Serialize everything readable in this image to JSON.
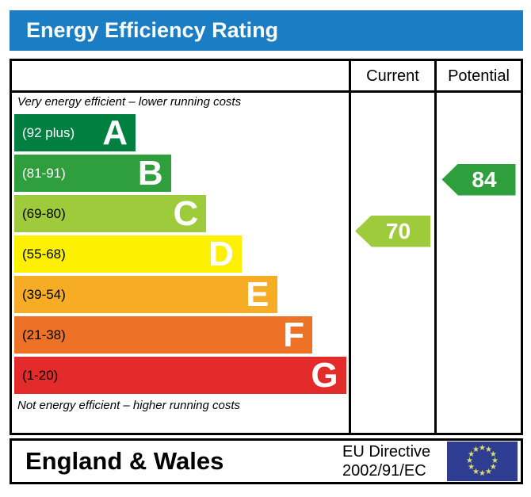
{
  "title": "Energy Efficiency Rating",
  "columns": {
    "current": "Current",
    "potential": "Potential"
  },
  "captions": {
    "top": "Very energy efficient – lower running costs",
    "bottom": "Not energy efficient – higher running costs"
  },
  "footer": {
    "region": "England & Wales",
    "directive_line1": "EU Directive",
    "directive_line2": "2002/91/EC",
    "flag_icon": "eu-flag"
  },
  "colors": {
    "header_blue": "#1b7dc4",
    "band_a": "#008040",
    "band_b": "#2e9f3c",
    "band_c": "#9ecb3c",
    "band_d": "#fef001",
    "band_e": "#f7ac25",
    "band_f": "#ee7226",
    "band_g": "#e42b2b",
    "eu_flag_blue": "#2e3c92",
    "eu_star_yellow": "#dbe06b",
    "border_black": "#000000",
    "white": "#ffffff"
  },
  "chart_data": {
    "type": "bar",
    "title": "Energy Efficiency Rating",
    "orientation": "horizontal",
    "scale_range": [
      1,
      100
    ],
    "bands": [
      {
        "letter": "A",
        "range": "(92 plus)",
        "min": 92,
        "max": 100,
        "color": "#008040",
        "label_color": "#ffffff",
        "width_pct": 36
      },
      {
        "letter": "B",
        "range": "(81-91)",
        "min": 81,
        "max": 91,
        "color": "#2e9f3c",
        "label_color": "#ffffff",
        "width_pct": 46.5
      },
      {
        "letter": "C",
        "range": "(69-80)",
        "min": 69,
        "max": 80,
        "color": "#9ecb3c",
        "label_color": "#000000",
        "width_pct": 57
      },
      {
        "letter": "D",
        "range": "(55-68)",
        "min": 55,
        "max": 68,
        "color": "#fef001",
        "label_color": "#000000",
        "width_pct": 67.5
      },
      {
        "letter": "E",
        "range": "(39-54)",
        "min": 39,
        "max": 54,
        "color": "#f7ac25",
        "label_color": "#000000",
        "width_pct": 78
      },
      {
        "letter": "F",
        "range": "(21-38)",
        "min": 21,
        "max": 38,
        "color": "#ee7226",
        "label_color": "#000000",
        "width_pct": 88.5
      },
      {
        "letter": "G",
        "range": "(1-20)",
        "min": 1,
        "max": 20,
        "color": "#e42b2b",
        "label_color": "#000000",
        "width_pct": 98.5
      }
    ],
    "ratings": {
      "current": {
        "value": 70,
        "band": "C",
        "color": "#9ecb3c"
      },
      "potential": {
        "value": 84,
        "band": "B",
        "color": "#2e9f3c"
      }
    }
  }
}
